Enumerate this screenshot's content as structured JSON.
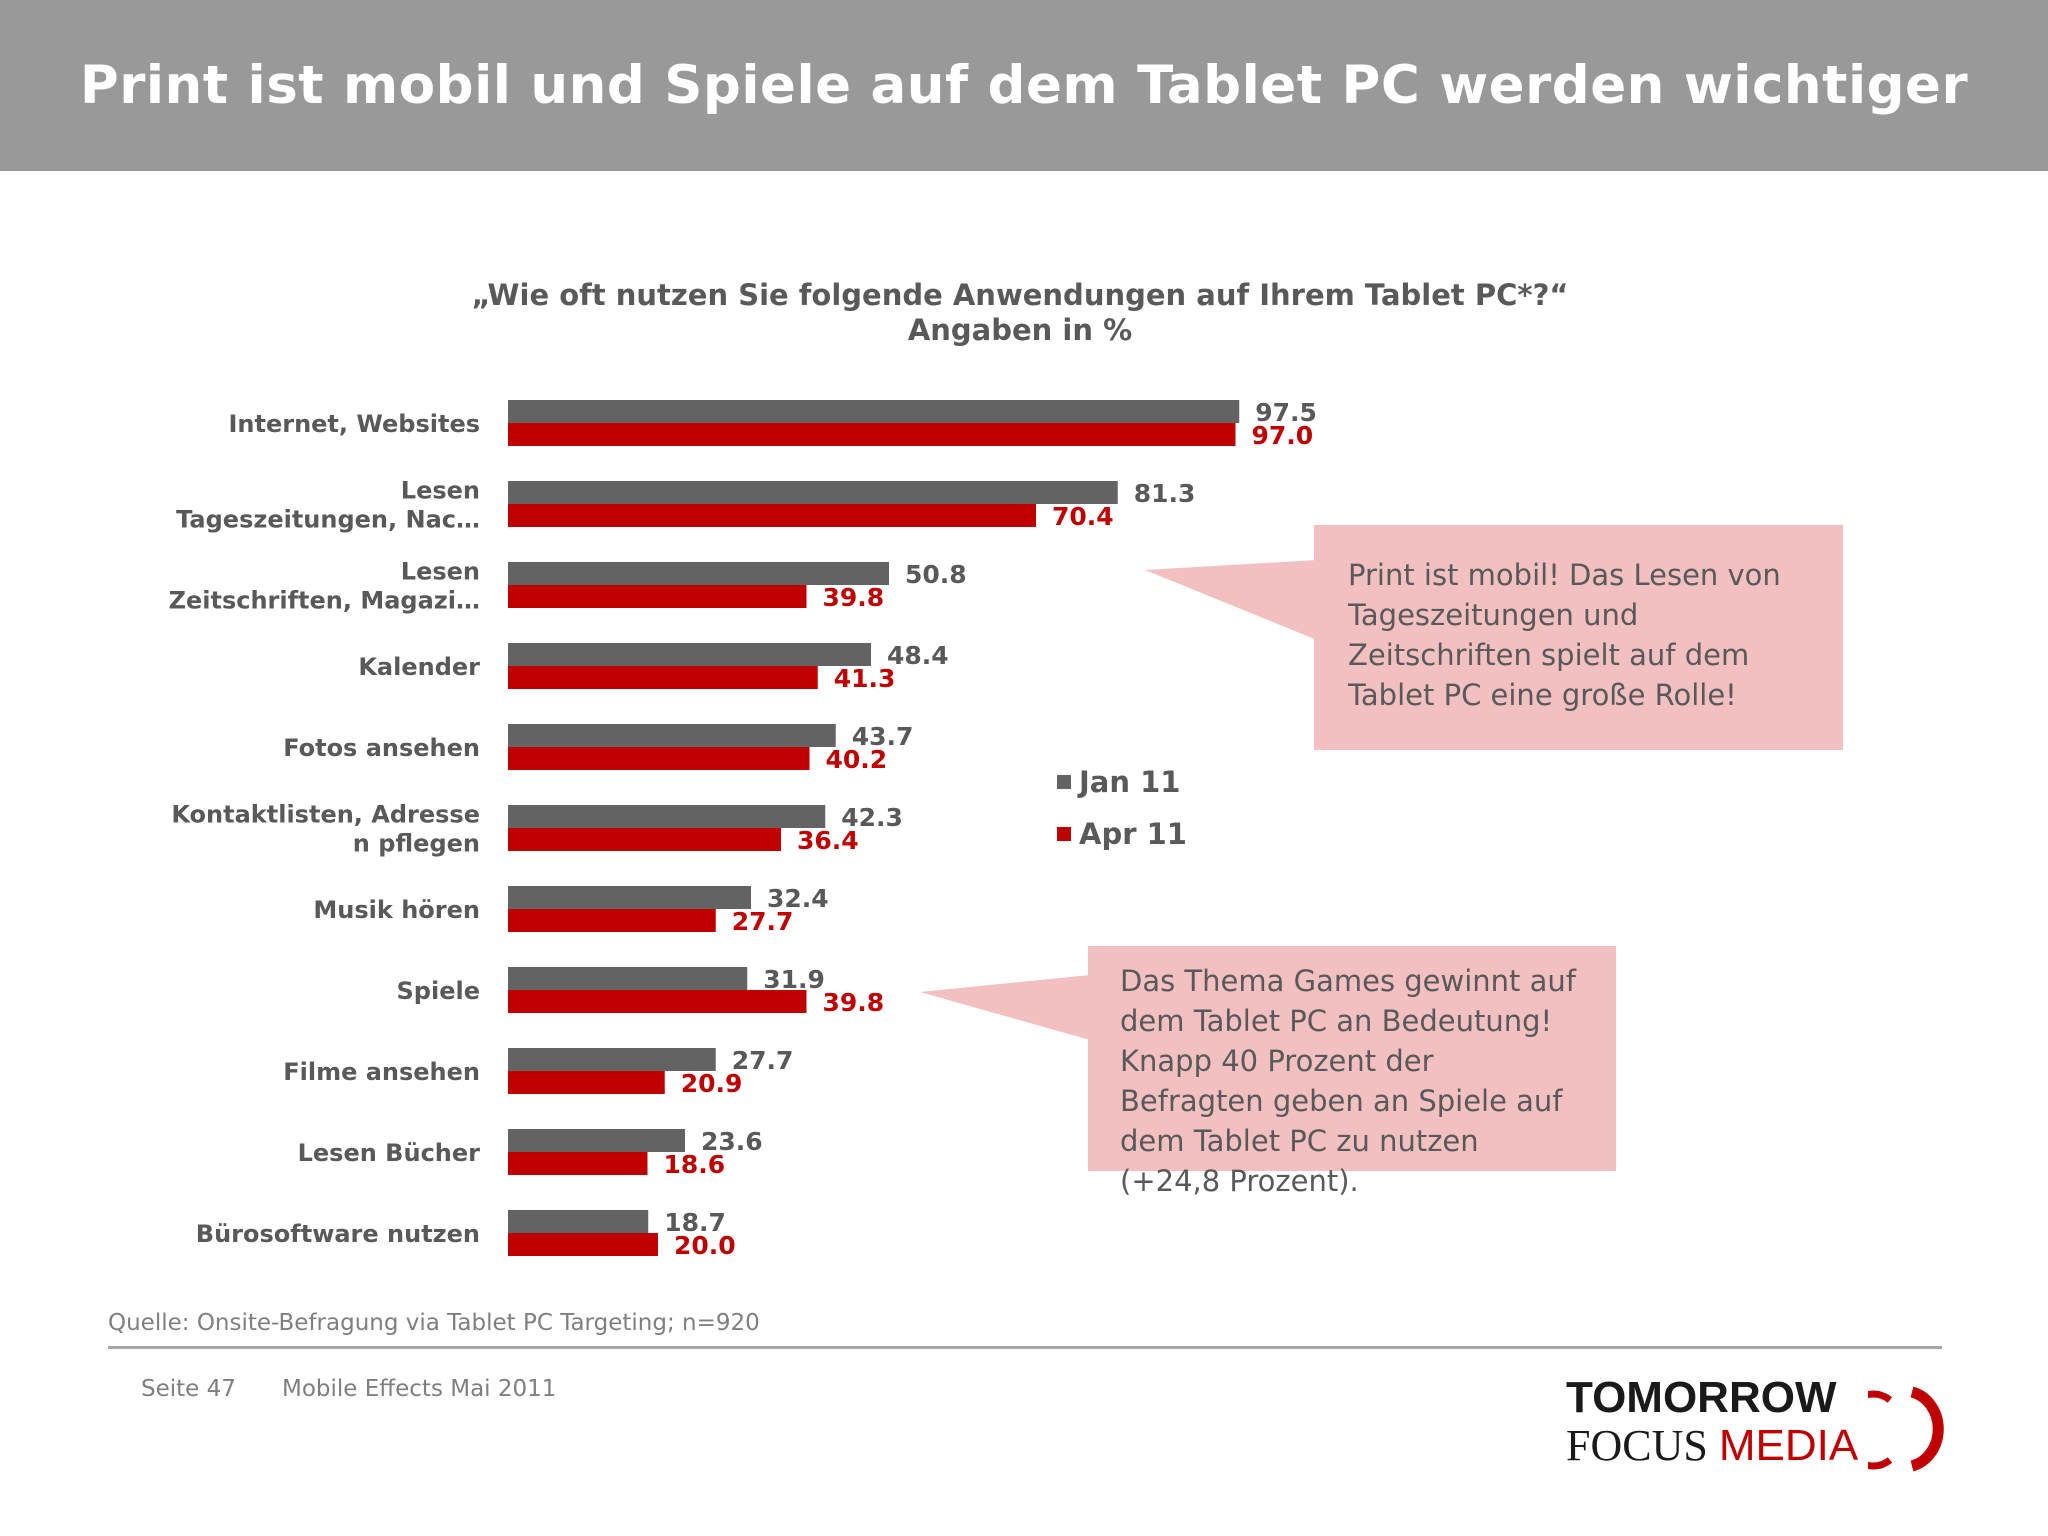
{
  "slide": {
    "title": "Print ist mobil und Spiele auf dem Tablet PC werden wichtiger"
  },
  "chart_data": {
    "type": "bar",
    "orientation": "horizontal",
    "title": "„Wie oft nutzen Sie folgende Anwendungen auf Ihrem Tablet PC*?“",
    "subtitle": "Angaben in %",
    "categories": [
      [
        "Internet, Websites"
      ],
      [
        "Lesen",
        "Tageszeitungen, Nac…"
      ],
      [
        "Lesen",
        "Zeitschriften, Magazi…"
      ],
      [
        "Kalender"
      ],
      [
        "Fotos ansehen"
      ],
      [
        "Kontaktlisten, Adresse",
        "n pflegen"
      ],
      [
        "Musik hören"
      ],
      [
        "Spiele"
      ],
      [
        "Filme ansehen"
      ],
      [
        "Lesen Bücher"
      ],
      [
        "Bürosoftware nutzen"
      ]
    ],
    "series": [
      {
        "name": "Jan 11",
        "color": "#636363",
        "values": [
          97.5,
          81.3,
          50.8,
          48.4,
          43.7,
          42.3,
          32.4,
          31.9,
          27.7,
          23.6,
          18.7
        ]
      },
      {
        "name": "Apr 11",
        "color": "#c00000",
        "values": [
          97.0,
          70.4,
          39.8,
          41.3,
          40.2,
          36.4,
          27.7,
          39.8,
          20.9,
          18.6,
          20.0
        ]
      }
    ],
    "xlim": [
      0,
      100
    ],
    "grid": false,
    "legend_position": "right"
  },
  "callouts": [
    {
      "text": "Print ist mobil! Das Lesen von Tageszeitungen und Zeitschriften spielt auf dem Tablet PC eine große Rolle!"
    },
    {
      "text": "Das Thema Games gewinnt auf dem Tablet PC an Bedeutung! Knapp 40 Prozent der Befragten geben an Spiele auf dem Tablet PC zu nutzen (+24,8 Prozent)."
    }
  ],
  "source": "Quelle: Onsite-Befragung via Tablet PC Targeting; n=920",
  "footer": {
    "page": "Seite 47",
    "issue": "Mobile Effects Mai 2011"
  },
  "logo": {
    "line1": "TOMORROW",
    "line2a": "FOCUS ",
    "line2b": "MEDIA"
  },
  "colors": {
    "header_bg": "#999999",
    "jan": "#636363",
    "apr": "#c00000",
    "callout_bg": "#f2c0c0",
    "text": "#595959"
  }
}
